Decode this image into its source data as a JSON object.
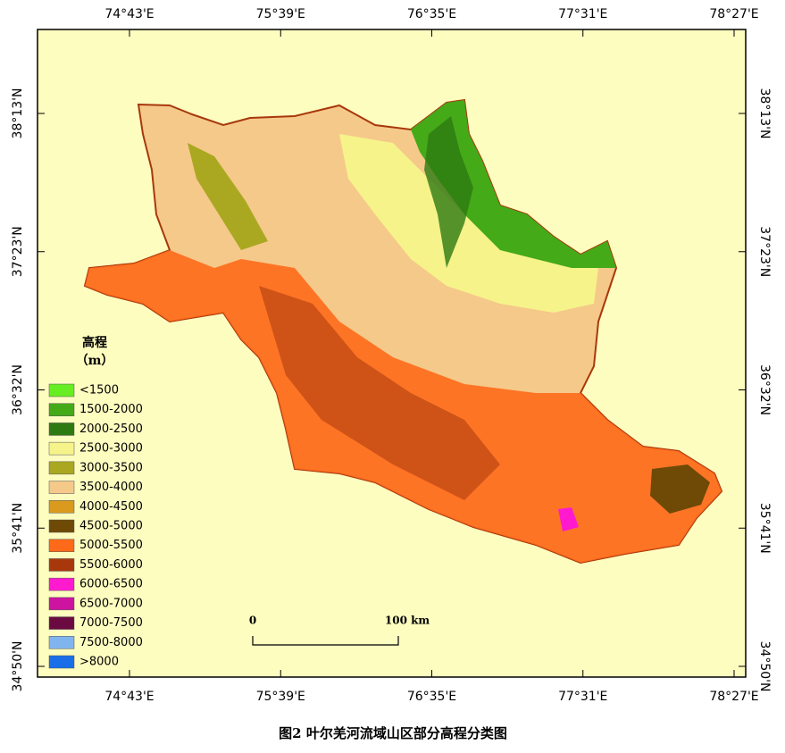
{
  "map": {
    "x_labels": [
      "74°43'E",
      "75°39'E",
      "76°35'E",
      "77°31'E",
      "78°27'E"
    ],
    "y_labels": [
      "38°13'N",
      "37°23'N",
      "36°32'N",
      "35°41'N",
      "34°50'N"
    ],
    "legend": {
      "title": "高程",
      "unit": "（m）",
      "items": [
        {
          "label": "<1500",
          "color": "#66ee22"
        },
        {
          "label": "1500-2000",
          "color": "#44aa18"
        },
        {
          "label": "2000-2500",
          "color": "#2d7a12"
        },
        {
          "label": "2500-3000",
          "color": "#f6f38a"
        },
        {
          "label": "3000-3500",
          "color": "#aaa820"
        },
        {
          "label": "3500-4000",
          "color": "#f5c98a"
        },
        {
          "label": "4000-4500",
          "color": "#d99a1e"
        },
        {
          "label": "4500-5000",
          "color": "#6e4a06"
        },
        {
          "label": "5000-5500",
          "color": "#ff6a1a"
        },
        {
          "label": "5500-6000",
          "color": "#a8380c"
        },
        {
          "label": "6000-6500",
          "color": "#ff1ad0"
        },
        {
          "label": "6500-7000",
          "color": "#cc14a0"
        },
        {
          "label": "7000-7500",
          "color": "#6a0a40"
        },
        {
          "label": "7500-8000",
          "color": "#80b4ee"
        },
        {
          "label": ">8000",
          "color": "#1a6ee8"
        }
      ]
    },
    "scale_bar": {
      "start": "0",
      "end": "100 km"
    },
    "caption": "图2 叶尔羌河流域山区部分高程分类图"
  }
}
